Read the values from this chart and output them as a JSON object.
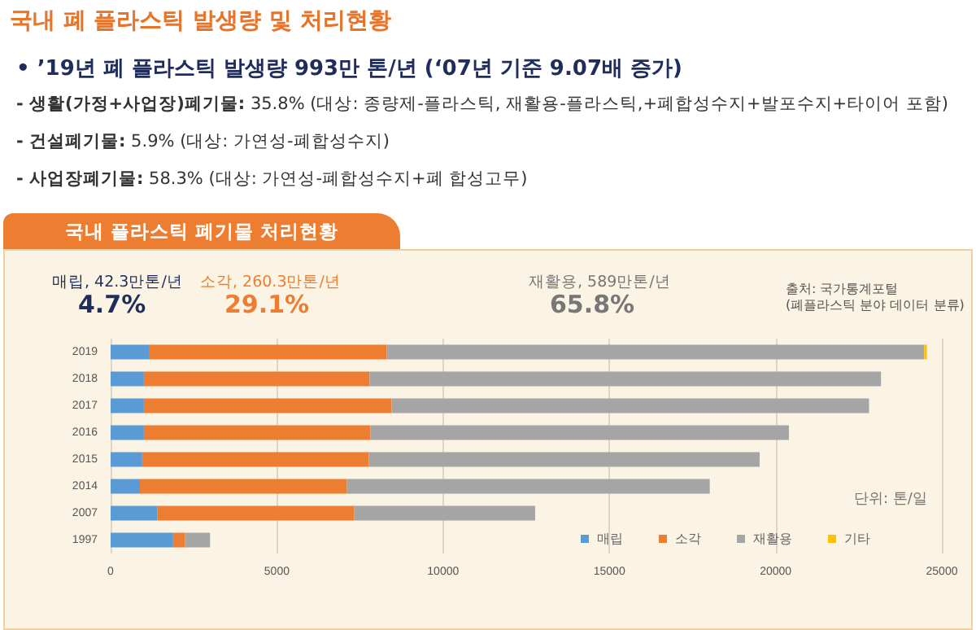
{
  "chart_data": {
    "type": "bar",
    "orientation": "horizontal",
    "stacked": true,
    "title": "국내 폐 플라스틱 발생량 및 처리현황",
    "subtitle": "• ’19년 폐 플라스틱 발생량 993만 톤/년 (‘07년 기준 9.07배 증가)",
    "annotations": [
      "- 생활(가정+사업장)폐기물: 35.8% (대상: 종량제-플라스틱, 재활용-플라스틱,+폐합성수지+발포수지+타이어 포함)",
      "- 건설폐기물: 5.9% (대상: 가연성-폐합성수지)",
      "- 사업장폐기물: 58.3% (대상: 가연성-폐합성수지+폐 합성고무)",
      "국내 플라스틱 폐기물 처리현황",
      "매립, 42.3만톤/년",
      "4.7%",
      "소각, 260.3만톤/년",
      "29.1%",
      "재활용, 589만톤/년",
      "65.8%",
      "출처: 국가통계포털",
      "(폐플라스틱 분야 데이터 분류)",
      "단위: 톤/일"
    ],
    "categories": [
      "2019",
      "2018",
      "2017",
      "2016",
      "2015",
      "2014",
      "2007",
      "1997"
    ],
    "series": [
      {
        "name": "매립",
        "color": "#5b9bd5",
        "values": [
          1150,
          1000,
          1000,
          1000,
          950,
          880,
          1400,
          1880
        ]
      },
      {
        "name": "소각",
        "color": "#ed7d31",
        "values": [
          7150,
          6790,
          7450,
          6810,
          6810,
          6230,
          5920,
          360
        ]
      },
      {
        "name": "재활용",
        "color": "#a5a5a5",
        "values": [
          16170,
          15380,
          14360,
          12590,
          11760,
          10910,
          5450,
          750
        ]
      },
      {
        "name": "기타",
        "color": "#ffc000",
        "values": [
          80,
          null,
          null,
          null,
          null,
          null,
          null,
          null
        ]
      }
    ],
    "xlim": [
      0,
      25000
    ],
    "xticks": [
      0,
      5000,
      10000,
      15000,
      20000,
      25000
    ],
    "grid": "x",
    "legend": "bottom right"
  }
}
